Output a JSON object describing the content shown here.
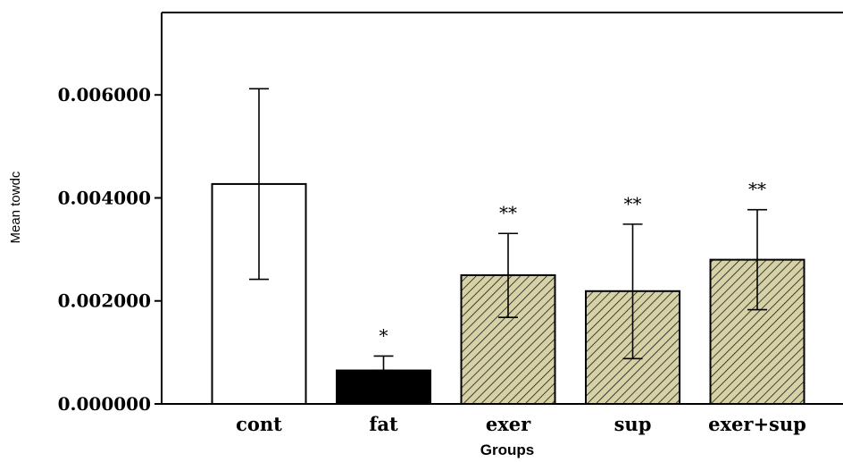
{
  "chart_data": {
    "type": "bar",
    "title": "",
    "xlabel": "Groups",
    "ylabel": "Mean towdc",
    "categories": [
      "cont",
      "fat",
      "exer",
      "sup",
      "exer+sup"
    ],
    "values": [
      0.00427,
      0.00065,
      0.0025,
      0.00219,
      0.0028
    ],
    "error_upper": [
      0.00612,
      0.00093,
      0.00331,
      0.00349,
      0.00377
    ],
    "error_lower": [
      0.00242,
      0.00065,
      0.00168,
      0.00088,
      0.00183
    ],
    "annotations": [
      "",
      "*",
      "**",
      "**",
      "**"
    ],
    "fill_styles": [
      "white",
      "black",
      "hatched",
      "hatched",
      "hatched"
    ],
    "ylim": [
      0,
      0.0076
    ],
    "y_ticks": [
      0,
      0.002,
      0.004,
      0.006
    ],
    "y_tick_labels": [
      "0.000000",
      "0.002000",
      "0.004000",
      "0.006000"
    ],
    "grid": false,
    "colors": {
      "white_fill": "#ffffff",
      "black_fill": "#000000",
      "hatch_background": "#d6d2a6",
      "hatch_line": "#1a1a1a",
      "axis": "#000000"
    }
  }
}
